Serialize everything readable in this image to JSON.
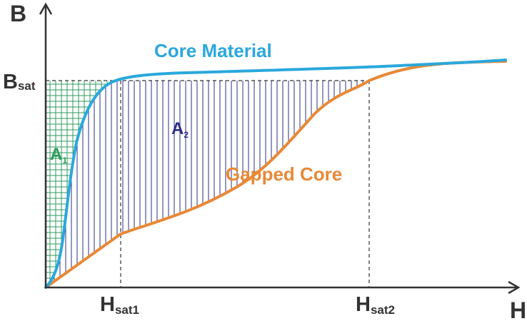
{
  "axes": {
    "y_label": "B",
    "x_label": "H"
  },
  "y_ticks": {
    "bsat_main": "B",
    "bsat_sub": "sat"
  },
  "x_ticks": {
    "hsat1_main": "H",
    "hsat1_sub": "sat1",
    "hsat2_main": "H",
    "hsat2_sub": "sat2"
  },
  "regions": {
    "a1_main": "A",
    "a1_sub": "1",
    "a2_main": "A",
    "a2_sub": "2"
  },
  "curves": {
    "core_material": "Core Material",
    "gapped_core": "Gapped Core"
  },
  "colors": {
    "core_material": "#2aa8dc",
    "gapped_core": "#e88936",
    "region_a1": "#2e9a5c",
    "region_a2": "#2b2f86",
    "axis": "#333333"
  }
}
